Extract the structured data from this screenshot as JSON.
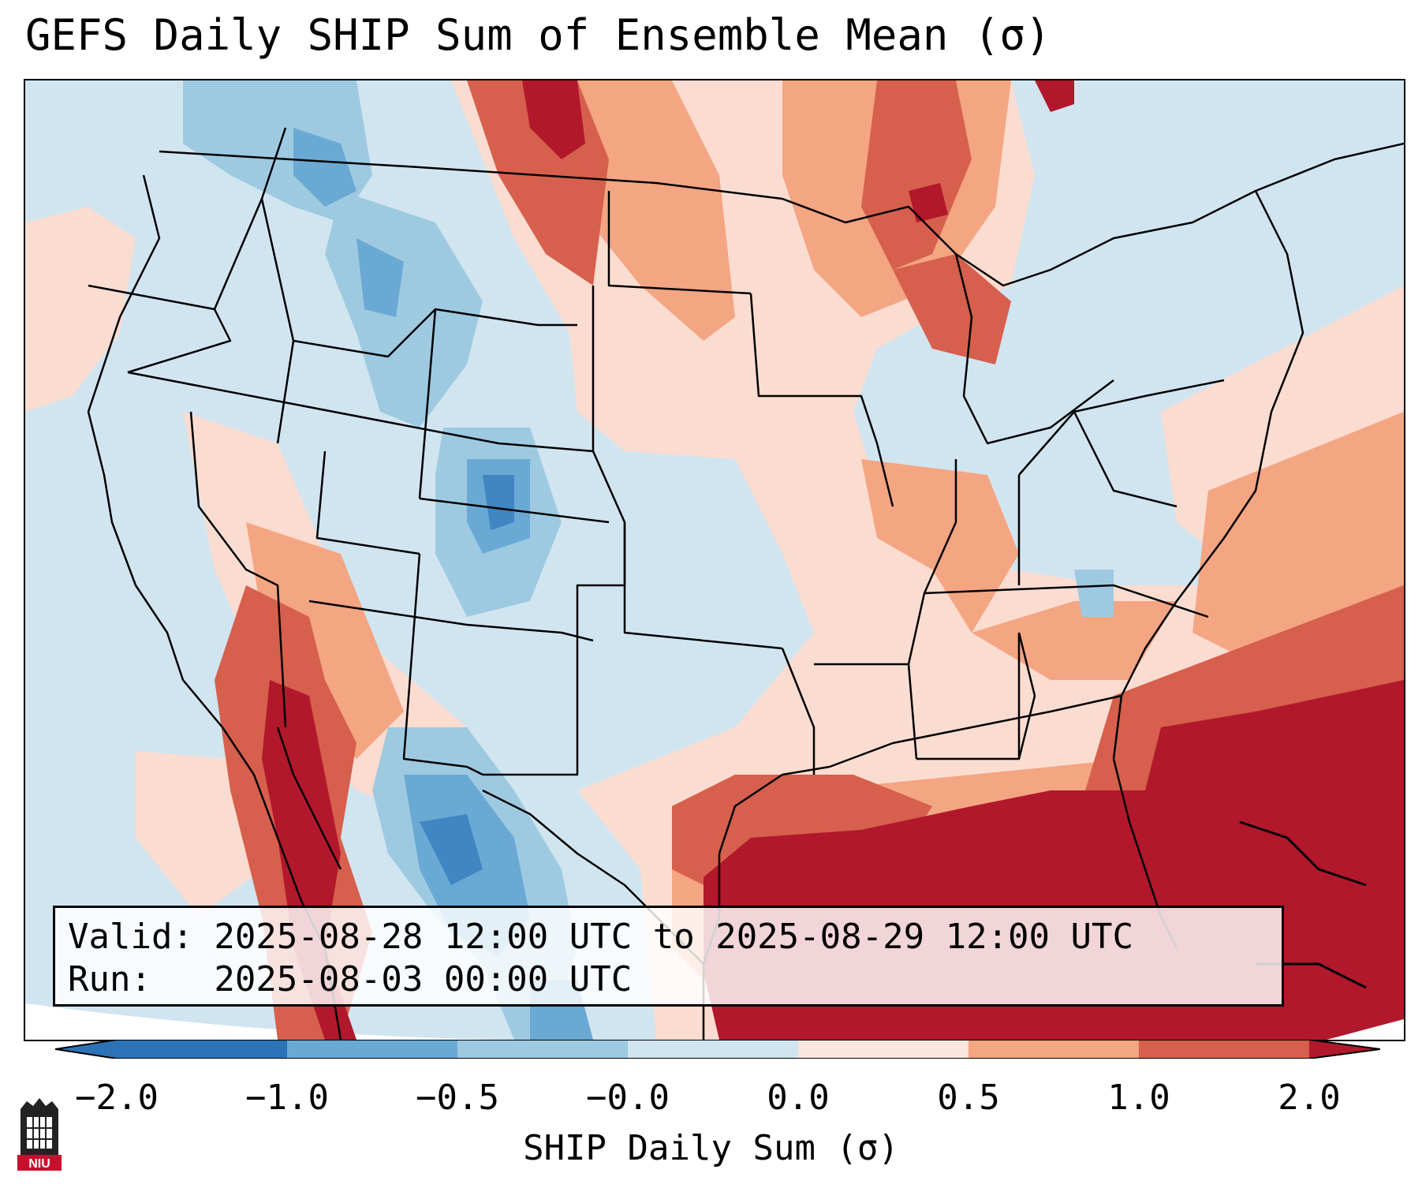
{
  "title": "GEFS Daily SHIP Sum of Ensemble Mean (σ)",
  "info": {
    "valid_line": "Valid: 2025-08-28 12:00 UTC to 2025-08-29 12:00 UTC",
    "run_line": "Run:   2025-08-03 00:00 UTC"
  },
  "colorbar": {
    "label": "SHIP Daily Sum (σ)",
    "ticks": [
      "−2.0",
      "−1.0",
      "−0.5",
      "−0.0",
      "0.0",
      "0.5",
      "1.0",
      "2.0"
    ],
    "colors": [
      "#2b73b6",
      "#6aa9d4",
      "#9ecae1",
      "#d1e5f0",
      "#fbe5dc",
      "#f4a582",
      "#d6604d",
      "#b2182b"
    ],
    "extend": "both"
  },
  "logo": {
    "text": "NIU",
    "name": "niu-logo"
  },
  "map": {
    "region": "Continental United States",
    "palette": {
      "ocean": "#cfe3ef",
      "land_neutral": "#d1e5f0"
    }
  }
}
